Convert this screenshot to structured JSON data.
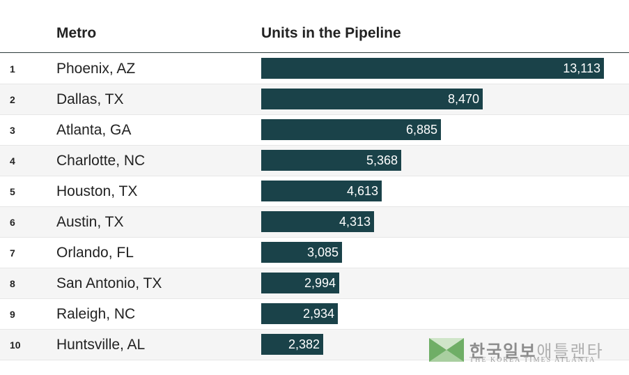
{
  "header": {
    "metro": "Metro",
    "units": "Units in the Pipeline"
  },
  "chart_data": {
    "type": "bar",
    "title": "",
    "xlabel": "",
    "ylabel": "Units in the Pipeline",
    "categories": [
      "Phoenix, AZ",
      "Dallas, TX",
      "Atlanta, GA",
      "Charlotte, NC",
      "Houston, TX",
      "Austin, TX",
      "Orlando, FL",
      "San Antonio, TX",
      "Raleigh, NC",
      "Huntsville, AL"
    ],
    "ranks": [
      "1",
      "2",
      "3",
      "4",
      "5",
      "6",
      "7",
      "8",
      "9",
      "10"
    ],
    "values": [
      13113,
      8470,
      6885,
      5368,
      4613,
      4313,
      3085,
      2994,
      2934,
      2382
    ],
    "labels": [
      "13,113",
      "8,470",
      "6,885",
      "5,368",
      "4,613",
      "4,313",
      "3,085",
      "2,994",
      "2,934",
      "2,382"
    ],
    "xlim": [
      0,
      13113
    ],
    "bar_color": "#1a4249"
  },
  "logo": {
    "korean_bold": "한국일보",
    "korean_light": "애틀랜타",
    "english": "THE KOREA TIMES ATLANTA"
  }
}
